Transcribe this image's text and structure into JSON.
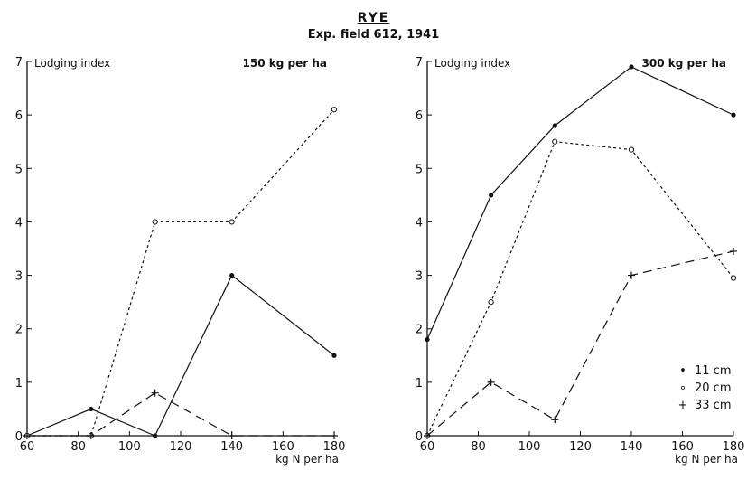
{
  "figure": {
    "title": "RYE",
    "subtitle": "Exp. field 612, 1941"
  },
  "legend": [
    {
      "marker": "•",
      "label": "11 cm"
    },
    {
      "marker": "∘",
      "label": "20 cm"
    },
    {
      "marker": "+",
      "label": "33 cm"
    }
  ],
  "chart_data": [
    {
      "type": "line",
      "ylabel": "Lodging index",
      "annotation": "150 kg per ha",
      "xlabel": "kg N per ha",
      "x": [
        60,
        85,
        110,
        140,
        180
      ],
      "xticks": [
        60,
        80,
        100,
        120,
        140,
        160,
        180
      ],
      "yticks": [
        0,
        1,
        2,
        3,
        4,
        5,
        6,
        7
      ],
      "xlim": [
        60,
        180
      ],
      "ylim": [
        0,
        7
      ],
      "grid": false,
      "series": [
        {
          "name": "11 cm",
          "marker": "dot",
          "dash": "solid",
          "values": [
            0,
            0.5,
            0,
            3,
            1.5
          ]
        },
        {
          "name": "20 cm",
          "marker": "circle",
          "dash": "dotted",
          "values": [
            0,
            0,
            4,
            4,
            6.1
          ]
        },
        {
          "name": "33 cm",
          "marker": "plus",
          "dash": "dashed",
          "values": [
            0,
            0,
            0.8,
            0,
            0
          ]
        }
      ]
    },
    {
      "type": "line",
      "ylabel": "Lodging index",
      "annotation": "300 kg per ha",
      "xlabel": "kg N per ha",
      "x": [
        60,
        85,
        110,
        140,
        180
      ],
      "xticks": [
        60,
        80,
        100,
        120,
        140,
        160,
        180
      ],
      "yticks": [
        0,
        1,
        2,
        3,
        4,
        5,
        6,
        7
      ],
      "xlim": [
        60,
        180
      ],
      "ylim": [
        0,
        7
      ],
      "grid": false,
      "legend_position": "bottom-right",
      "series": [
        {
          "name": "11 cm",
          "marker": "dot",
          "dash": "solid",
          "values": [
            1.8,
            4.5,
            5.8,
            6.9,
            6
          ]
        },
        {
          "name": "20 cm",
          "marker": "circle",
          "dash": "dotted",
          "values": [
            0,
            2.5,
            5.5,
            5.35,
            2.95
          ]
        },
        {
          "name": "33 cm",
          "marker": "plus",
          "dash": "dashed",
          "values": [
            0,
            1,
            0.3,
            3,
            3.45
          ]
        }
      ]
    }
  ]
}
